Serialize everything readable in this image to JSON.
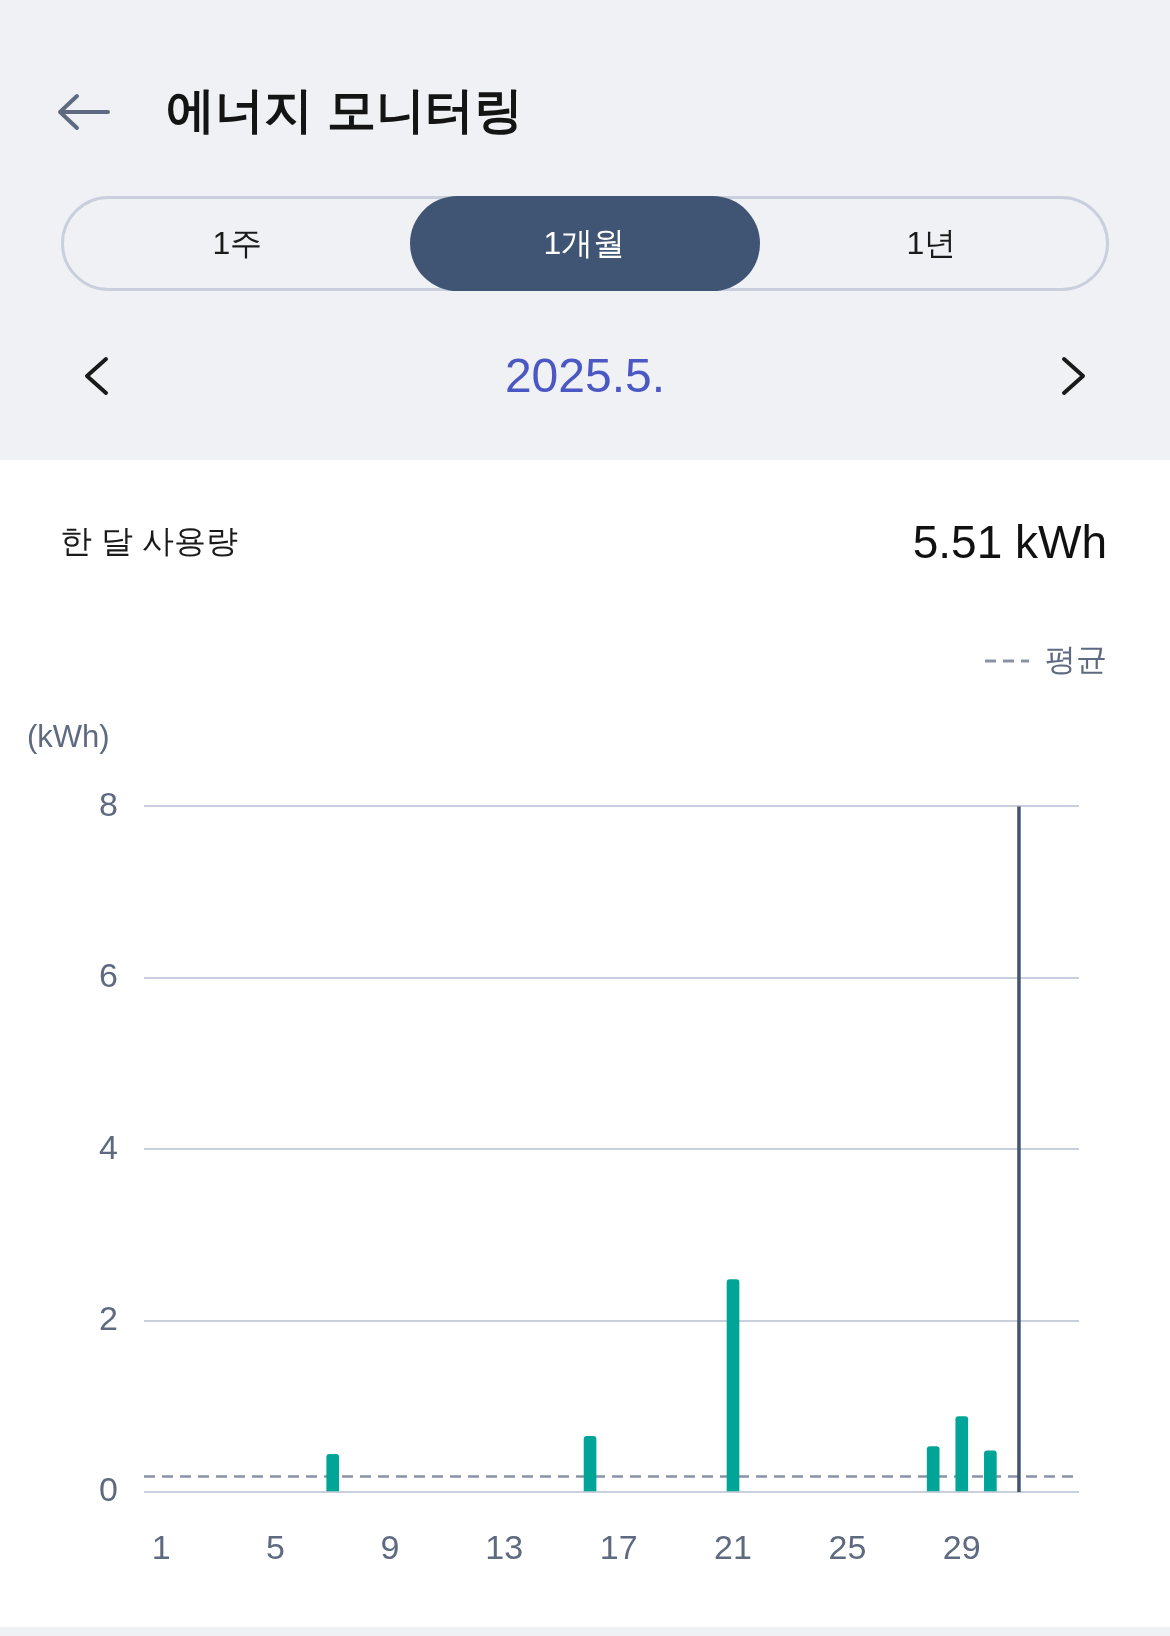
{
  "chart_data": {
    "type": "bar",
    "title": "에너지 모니터링",
    "subtitle": "2025.5.",
    "annotations": [
      "1주",
      "1개월",
      "1년",
      "한 달 사용량",
      "5.51 kWh"
    ],
    "ylabel": "(kWh)",
    "x": [
      7,
      16,
      21,
      28,
      29,
      30
    ],
    "values": [
      0.44,
      0.65,
      2.48,
      0.53,
      0.88,
      0.48
    ],
    "color": "#00a597",
    "xlim": [
      0.4,
      33.1
    ],
    "xticks": [
      1,
      5,
      9,
      13,
      17,
      21,
      25,
      29
    ],
    "ylim": [
      0,
      8
    ],
    "yticks": [
      0,
      2,
      4,
      6,
      8
    ],
    "grid": "y",
    "legend": "top right",
    "ref_lines": [
      {
        "axis": "y",
        "value": 0.18,
        "label": "평균",
        "color": "#8a93a6",
        "line_style": "dashed"
      },
      {
        "axis": "x",
        "value": 31,
        "color": "#44546f",
        "line_style": "solid"
      }
    ]
  }
}
